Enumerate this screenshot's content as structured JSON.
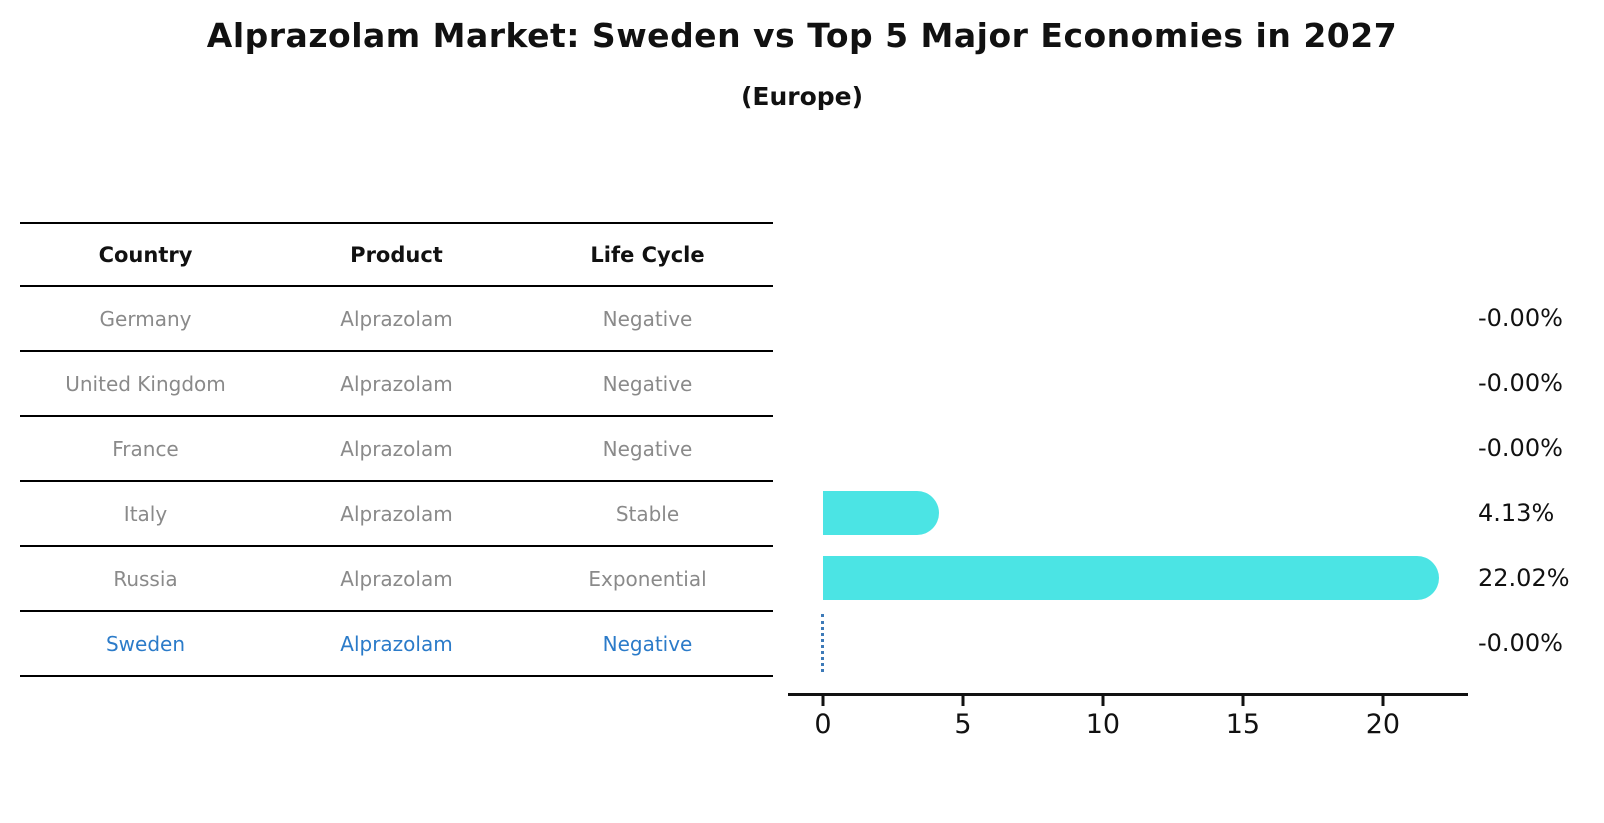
{
  "header": {
    "title": "Alprazolam Market: Sweden vs Top 5 Major Economies in 2027",
    "subtitle": "(Europe)"
  },
  "table": {
    "headers": {
      "country": "Country",
      "product": "Product",
      "life_cycle": "Life Cycle"
    },
    "rows": [
      {
        "country": "Germany",
        "product": "Alprazolam",
        "life_cycle": "Negative",
        "highlighted": false
      },
      {
        "country": "United Kingdom",
        "product": "Alprazolam",
        "life_cycle": "Negative",
        "highlighted": false
      },
      {
        "country": "France",
        "product": "Alprazolam",
        "life_cycle": "Negative",
        "highlighted": false
      },
      {
        "country": "Italy",
        "product": "Alprazolam",
        "life_cycle": "Stable",
        "highlighted": false
      },
      {
        "country": "Russia",
        "product": "Alprazolam",
        "life_cycle": "Exponential",
        "highlighted": false
      },
      {
        "country": "Sweden",
        "product": "Alprazolam",
        "life_cycle": "Negative",
        "highlighted": true
      }
    ]
  },
  "chart_data": {
    "type": "bar",
    "orientation": "horizontal",
    "title": "Alprazolam Market: Sweden vs Top 5 Major Economies in 2027 (Europe)",
    "categories": [
      "Germany",
      "United Kingdom",
      "France",
      "Italy",
      "Russia",
      "Sweden"
    ],
    "values": [
      -0.0,
      -0.0,
      -0.0,
      4.13,
      22.02,
      -0.0
    ],
    "value_labels": [
      "-0.00%",
      "-0.00%",
      "-0.00%",
      "4.13%",
      "22.02%",
      "-0.00%"
    ],
    "unit": "percent",
    "x_ticks": [
      0,
      5,
      10,
      15,
      20
    ],
    "xlim": [
      -1.25,
      23.04
    ],
    "grid": false,
    "legend": false,
    "highlight_index": 5,
    "highlight_marker": "dotted-vertical-line-at-zero",
    "bar_color": "#4be4e4"
  },
  "colors": {
    "bar": "#4be4e4",
    "highlight_text": "#2b7bc9",
    "row_text": "#8a8a8a",
    "header_text": "#111111",
    "axis": "#111111",
    "marker_line": "#3d7ab8"
  }
}
